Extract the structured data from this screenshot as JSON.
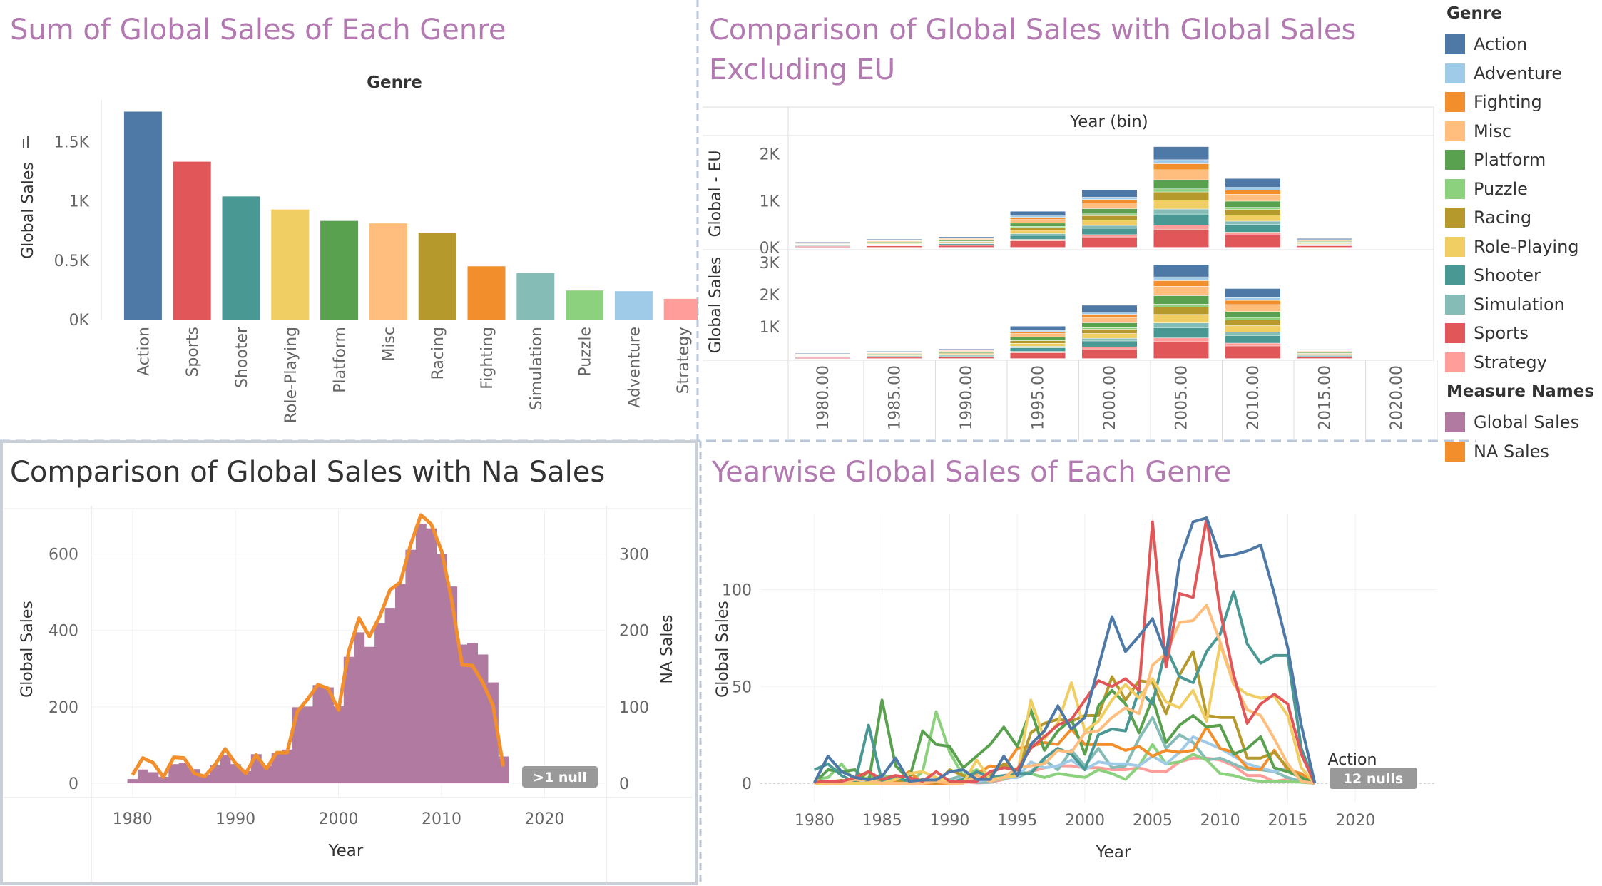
{
  "titles": {
    "tl": "Sum of Global Sales of Each Genre",
    "tr": "Comparison of Global Sales with Global Sales\nExcluding EU",
    "bl": "Comparison of Global Sales with Na Sales",
    "br": "Yearwise Global Sales of Each Genre"
  },
  "legend": {
    "genre_title": "Genre",
    "genres": [
      {
        "name": "Action",
        "color": "#4e79a7"
      },
      {
        "name": "Adventure",
        "color": "#a0cbe8"
      },
      {
        "name": "Fighting",
        "color": "#f28e2b"
      },
      {
        "name": "Misc",
        "color": "#ffbe7d"
      },
      {
        "name": "Platform",
        "color": "#59a14f"
      },
      {
        "name": "Puzzle",
        "color": "#8cd17d"
      },
      {
        "name": "Racing",
        "color": "#b6992d"
      },
      {
        "name": "Role-Playing",
        "color": "#f1ce63"
      },
      {
        "name": "Shooter",
        "color": "#499894"
      },
      {
        "name": "Simulation",
        "color": "#86bcb6"
      },
      {
        "name": "Sports",
        "color": "#e15759"
      },
      {
        "name": "Strategy",
        "color": "#ff9d9a"
      }
    ],
    "measure_title": "Measure Names",
    "measures": [
      {
        "name": "Global Sales",
        "color": "#b07aa1"
      },
      {
        "name": "NA Sales",
        "color": "#f28e2b"
      }
    ]
  },
  "chart_data": [
    {
      "id": "genre-bars",
      "type": "bar",
      "header": "Genre",
      "ylabel": "Global Sales",
      "categories": [
        "Action",
        "Sports",
        "Shooter",
        "Role-Playing",
        "Platform",
        "Misc",
        "Racing",
        "Fighting",
        "Simulation",
        "Puzzle",
        "Adventure",
        "Strategy"
      ],
      "values": [
        1751,
        1330,
        1037,
        927,
        831,
        810,
        732,
        449,
        392,
        245,
        239,
        175
      ],
      "yticks": [
        {
          "v": 0,
          "label": "0K"
        },
        {
          "v": 500,
          "label": "0.5K"
        },
        {
          "v": 1000,
          "label": "1K"
        },
        {
          "v": 1500,
          "label": "1.5K"
        }
      ],
      "ylim": [
        0,
        1850
      ]
    },
    {
      "id": "year-bin-stacked",
      "type": "bar",
      "header": "Year (bin)",
      "categories": [
        "1980.00",
        "1985.00",
        "1990.00",
        "1995.00",
        "2000.00",
        "2005.00",
        "2010.00",
        "2015.00",
        "2020.00"
      ],
      "genre_order": [
        "Sports",
        "Strategy",
        "Shooter",
        "Simulation",
        "Role-Playing",
        "Racing",
        "Puzzle",
        "Platform",
        "Misc",
        "Fighting",
        "Adventure",
        "Action"
      ],
      "top": {
        "ylabel": "Global - EU",
        "yticks": [
          {
            "v": 0,
            "label": "0K"
          },
          {
            "v": 1000,
            "label": "1K"
          },
          {
            "v": 2000,
            "label": "2K"
          }
        ],
        "ylim": [
          0,
          2300
        ],
        "totals": [
          120,
          175,
          225,
          770,
          1230,
          2150,
          1470,
          190,
          0
        ]
      },
      "bottom": {
        "ylabel": "Global Sales",
        "yticks": [
          {
            "v": 1000,
            "label": "1K"
          },
          {
            "v": 2000,
            "label": "2K"
          },
          {
            "v": 3000,
            "label": "3K"
          }
        ],
        "ylim": [
          0,
          3350
        ],
        "totals": [
          175,
          230,
          300,
          1010,
          1660,
          2920,
          2180,
          290,
          0
        ]
      }
    },
    {
      "id": "global-vs-na",
      "type": "area",
      "xlabel": "Year",
      "ylabel_left": "Global Sales",
      "ylabel_right": "NA Sales",
      "badge": ">1 null",
      "x": [
        1980,
        1981,
        1982,
        1983,
        1984,
        1985,
        1986,
        1987,
        1988,
        1989,
        1990,
        1991,
        1992,
        1993,
        1994,
        1995,
        1996,
        1997,
        1998,
        1999,
        2000,
        2001,
        2002,
        2003,
        2004,
        2005,
        2006,
        2007,
        2008,
        2009,
        2010,
        2011,
        2012,
        2013,
        2014,
        2015,
        2016
      ],
      "global_sales": [
        11,
        36,
        29,
        17,
        50,
        54,
        37,
        22,
        47,
        74,
        50,
        32,
        76,
        46,
        79,
        88,
        199,
        201,
        257,
        251,
        202,
        331,
        395,
        357,
        419,
        459,
        521,
        611,
        679,
        667,
        601,
        515,
        363,
        367,
        337,
        264,
        70
      ],
      "na_sales": [
        11,
        33,
        27,
        8,
        34,
        33,
        13,
        9,
        24,
        45,
        26,
        13,
        37,
        19,
        40,
        40,
        94,
        110,
        129,
        124,
        96,
        173,
        216,
        192,
        218,
        253,
        263,
        312,
        351,
        339,
        304,
        239,
        155,
        154,
        132,
        102,
        22
      ],
      "yticks_left": [
        0,
        200,
        400,
        600
      ],
      "yticks_right": [
        0,
        100,
        200,
        300
      ],
      "ylim_left": [
        0,
        700
      ],
      "ylim_right": [
        0,
        350
      ],
      "xticks": [
        1980,
        1990,
        2000,
        2010,
        2020
      ]
    },
    {
      "id": "yearwise-genre",
      "type": "line",
      "xlabel": "Year",
      "ylabel": "Global Sales",
      "end_label": "Action",
      "badge": "12 nulls",
      "yticks": [
        0,
        50,
        100
      ],
      "ylim": [
        0,
        140
      ],
      "xticks": [
        1980,
        1985,
        1990,
        1995,
        2000,
        2005,
        2010,
        2015,
        2020
      ],
      "x": [
        1980,
        1981,
        1982,
        1983,
        1984,
        1985,
        1986,
        1987,
        1988,
        1989,
        1990,
        1991,
        1992,
        1993,
        1994,
        1995,
        1996,
        1997,
        1998,
        1999,
        2000,
        2001,
        2002,
        2003,
        2004,
        2005,
        2006,
        2007,
        2008,
        2009,
        2010,
        2011,
        2012,
        2013,
        2014,
        2015,
        2016,
        2017
      ],
      "series": [
        {
          "name": "Action",
          "values": [
            0.3,
            14,
            6,
            3,
            1.8,
            3.5,
            13,
            1,
            1.7,
            1.7,
            6,
            7,
            2,
            2,
            14,
            4,
            20,
            27,
            40,
            28,
            34,
            60,
            86,
            68,
            76,
            85,
            66,
            115,
            135,
            137,
            117,
            118,
            120,
            123,
            98,
            70,
            30,
            0
          ]
        },
        {
          "name": "Adventure",
          "values": [
            0,
            0,
            0,
            0.4,
            0,
            0,
            0,
            1.5,
            0,
            0,
            0,
            3,
            1,
            2,
            3,
            3,
            11,
            8,
            9,
            12,
            7,
            11,
            10,
            10,
            9,
            14,
            10,
            16,
            24,
            21,
            18,
            14,
            10,
            8,
            6,
            8,
            4,
            0
          ]
        },
        {
          "name": "Fighting",
          "values": [
            0.8,
            0,
            1.2,
            0,
            0,
            1,
            0.5,
            6,
            0,
            0,
            0,
            1,
            5,
            9,
            8,
            18,
            19,
            21,
            20,
            28,
            20,
            20,
            20,
            17,
            19,
            14,
            17,
            16,
            17,
            29,
            18,
            16,
            8,
            7,
            17,
            7,
            5,
            0
          ]
        },
        {
          "name": "Misc",
          "values": [
            2,
            0,
            0,
            2,
            1.5,
            0,
            0,
            0,
            0,
            1,
            0,
            0,
            4,
            1,
            3,
            8,
            9,
            10,
            17,
            16,
            26,
            27,
            34,
            39,
            36,
            61,
            67,
            83,
            84,
            92,
            73,
            52,
            38,
            35,
            23,
            10,
            1,
            0
          ]
        },
        {
          "name": "Platform",
          "values": [
            0,
            7,
            6,
            7,
            0,
            43,
            9,
            2,
            27,
            20,
            19,
            8,
            14,
            20,
            29,
            19,
            38,
            17,
            27,
            33,
            15,
            40,
            48,
            41,
            26,
            44,
            21,
            30,
            35,
            29,
            30,
            15,
            18,
            24,
            8,
            6,
            3,
            0
          ]
        },
        {
          "name": "Puzzle",
          "values": [
            2,
            3,
            10,
            1,
            3,
            4,
            3,
            0,
            6,
            37,
            16,
            4,
            7,
            3,
            2,
            6,
            5,
            3,
            5,
            4,
            3,
            7,
            5,
            2,
            9,
            20,
            10,
            11,
            15,
            12,
            5,
            4,
            2,
            1,
            1,
            1,
            0.5,
            0
          ]
        },
        {
          "name": "Racing",
          "values": [
            0,
            0.5,
            1.6,
            0,
            6,
            0.4,
            2,
            0,
            2,
            0,
            7,
            4,
            2,
            4,
            10,
            5,
            26,
            31,
            33,
            32,
            35,
            35,
            55,
            43,
            53,
            52,
            36,
            56,
            68,
            35,
            34,
            34,
            13,
            13,
            16,
            8,
            3,
            0
          ]
        },
        {
          "name": "Role-Playing",
          "values": [
            0,
            0,
            0,
            0,
            0,
            0,
            2,
            5,
            6,
            3,
            0,
            0,
            12,
            2,
            3,
            4,
            43,
            23,
            31,
            52,
            27,
            32,
            43,
            51,
            44,
            54,
            42,
            39,
            48,
            32,
            72,
            51,
            46,
            44,
            45,
            35,
            8,
            0
          ]
        },
        {
          "name": "Shooter",
          "values": [
            7,
            10,
            4,
            0.5,
            30,
            1,
            3,
            1,
            0.5,
            1,
            0.3,
            2,
            6,
            3,
            4,
            5,
            5,
            13,
            18,
            15,
            7,
            25,
            28,
            27,
            48,
            41,
            70,
            55,
            52,
            68,
            77,
            99,
            72,
            62,
            66,
            66,
            18,
            0
          ]
        },
        {
          "name": "Simulation",
          "values": [
            0,
            0,
            0,
            0,
            0,
            0,
            0,
            0,
            0,
            0,
            2,
            4,
            0.4,
            0.5,
            3,
            3,
            6,
            12,
            7,
            17,
            9,
            18,
            8,
            9,
            23,
            34,
            18,
            25,
            21,
            12,
            13,
            10,
            7,
            7,
            6,
            3,
            1,
            0
          ]
        },
        {
          "name": "Sports",
          "values": [
            0.5,
            1,
            1,
            3,
            6,
            2,
            4,
            3,
            1,
            6,
            1,
            1,
            1,
            6,
            8,
            7,
            18,
            24,
            30,
            33,
            43,
            53,
            50,
            54,
            48,
            135,
            60,
            98,
            96,
            137,
            89,
            56,
            31,
            41,
            46,
            41,
            15,
            0
          ]
        },
        {
          "name": "Strategy",
          "values": [
            0,
            0,
            0,
            0,
            0,
            0,
            0,
            0,
            0,
            0,
            0,
            0.9,
            0.2,
            0.5,
            2,
            4,
            6,
            8,
            9,
            9,
            8,
            8,
            7,
            7,
            8,
            6,
            6,
            11,
            13,
            13,
            12,
            9,
            4,
            4,
            1,
            2,
            1,
            0
          ]
        }
      ]
    }
  ]
}
